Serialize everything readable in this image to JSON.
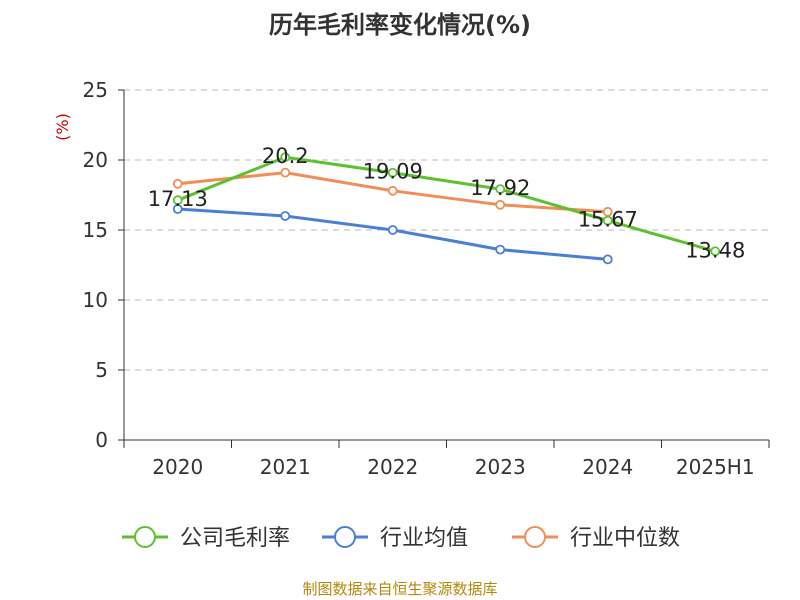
{
  "colors": {
    "axis": "#333333",
    "grid": "#bbbbbb",
    "ylabel": "#cc0000",
    "source": "#b8860b"
  },
  "footer": {
    "source": "制图数据来自恒生聚源数据库"
  },
  "chart_data": {
    "type": "line",
    "title": "历年毛利率变化情况(%)",
    "ylabel": "(%)",
    "xlabel": "",
    "ylim": [
      0,
      25
    ],
    "yticks": [
      0,
      5,
      10,
      15,
      20,
      25
    ],
    "grid": true,
    "legend_position": "bottom",
    "categories": [
      "2020",
      "2021",
      "2022",
      "2023",
      "2024",
      "2025H1"
    ],
    "series": [
      {
        "name": "公司毛利率",
        "color": "#5cc12f",
        "values": [
          17.13,
          20.2,
          19.09,
          17.92,
          15.67,
          13.48
        ],
        "labels": [
          "17.13",
          "20.2",
          "19.09",
          "17.92",
          "15.67",
          "13.48"
        ]
      },
      {
        "name": "行业均值",
        "color": "#4a7fd6",
        "values": [
          16.5,
          16.0,
          15.0,
          13.6,
          12.9,
          null
        ]
      },
      {
        "name": "行业中位数",
        "color": "#f28d55",
        "values": [
          18.3,
          19.1,
          17.8,
          16.8,
          16.3,
          null
        ]
      }
    ]
  }
}
